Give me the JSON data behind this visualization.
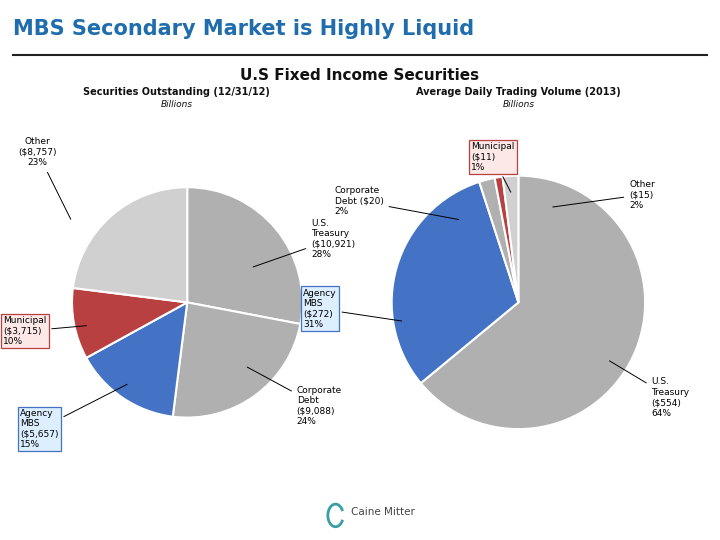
{
  "title": "MBS Secondary Market is Highly Liquid",
  "subtitle": "U.S Fixed Income Securities",
  "pie1_title": "Securities Outstanding (12/31/12)",
  "pie1_subtitle": "Billions",
  "pie2_title": "Average Daily Trading Volume (2013)",
  "pie2_subtitle": "Billions",
  "pie1_values": [
    28,
    24,
    15,
    10,
    23
  ],
  "pie1_colors": [
    "#b0b0b0",
    "#b0b0b0",
    "#4472c4",
    "#b94040",
    "#d0d0d0"
  ],
  "pie2_values": [
    64,
    31,
    2,
    1,
    2
  ],
  "pie2_colors": [
    "#b0b0b0",
    "#4472c4",
    "#b0b0b0",
    "#b94040",
    "#d0d0d0"
  ],
  "bg_color": "#ffffff",
  "title_color": "#1f6dad",
  "line_color": "#222222",
  "text_color": "#111111",
  "ann_fontsize": 6.5,
  "logo_color": "#3a9ea5",
  "muni_box_face": "#fde8e8",
  "muni_box_edge": "#b94040",
  "mbs_box_face": "#ddeeff",
  "mbs_box_edge": "#4472c4"
}
